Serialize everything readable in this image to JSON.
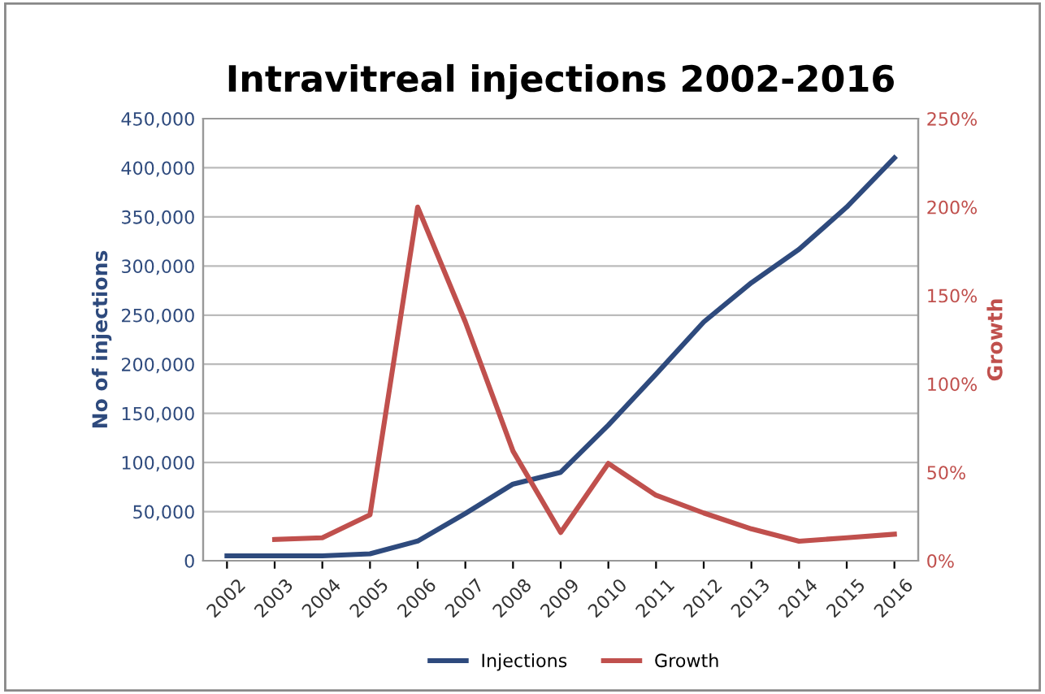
{
  "chart_data": {
    "type": "line",
    "title": "Intravitreal injections 2002-2016",
    "ylabel": "No of injections",
    "y2label": "Growth",
    "categories": [
      "2002",
      "2003",
      "2004",
      "2005",
      "2006",
      "2007",
      "2008",
      "2009",
      "2010",
      "2011",
      "2012",
      "2013",
      "2014",
      "2015",
      "2016"
    ],
    "series": [
      {
        "name": "Injections",
        "color": "#2e4a7d",
        "values": [
          5000,
          5000,
          5000,
          7000,
          20000,
          48000,
          78000,
          90000,
          138000,
          190000,
          243000,
          283000,
          317000,
          360000,
          410000
        ]
      },
      {
        "name": "Growth",
        "color": "#c0504d",
        "axis": "y2",
        "values": [
          null,
          12,
          13,
          26,
          200,
          135,
          62,
          16,
          55,
          37,
          27,
          18,
          11,
          13,
          15
        ]
      }
    ],
    "ylim": [
      0,
      450000
    ],
    "yticks": [
      0,
      {
        "value": 50000,
        "label": "50,000"
      },
      {
        "value": 100000,
        "label": "100,000"
      },
      {
        "value": 150000,
        "label": "150,000"
      },
      {
        "value": 200000,
        "label": "200,000"
      },
      {
        "value": 250000,
        "label": "250,000"
      },
      {
        "value": 300000,
        "label": "300,000"
      },
      {
        "value": 350000,
        "label": "350,000"
      },
      {
        "value": 400000,
        "label": "400,000"
      },
      {
        "value": 450000,
        "label": "450,000"
      }
    ],
    "y2lim": [
      0,
      250
    ],
    "y2ticks": [
      {
        "value": 0,
        "label": "0%"
      },
      {
        "value": 50,
        "label": "50%"
      },
      {
        "value": 100,
        "label": "100%"
      },
      {
        "value": 150,
        "label": "150%"
      },
      {
        "value": 200,
        "label": "200%"
      },
      {
        "value": 250,
        "label": "250%"
      }
    ],
    "grid": "y",
    "legend": "bottom",
    "marker": "none",
    "line_style": "solid"
  }
}
